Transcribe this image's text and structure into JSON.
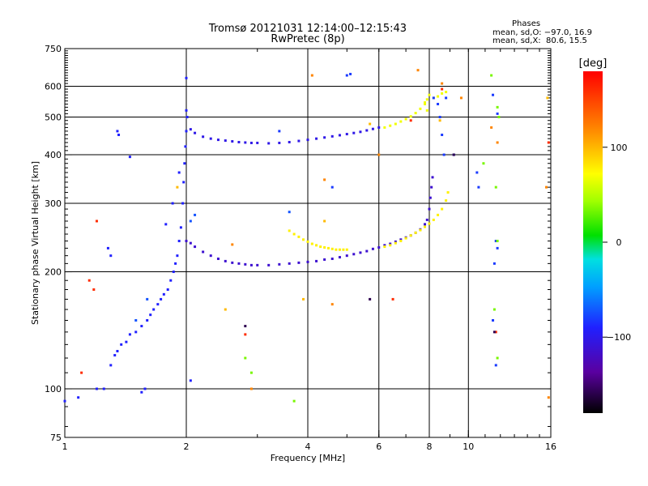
{
  "header": {
    "title": "Tromsø 20121031 12:14:00–12:15:43",
    "subtitle": "RwPretec (8p)"
  },
  "phase_stats": {
    "title": "Phases",
    "line_o": "mean, sd,O: −97.0, 16.9",
    "line_x": "mean, sd,X:  80.6, 15.5"
  },
  "colorbar": {
    "label": "[deg]",
    "range": [
      -180,
      180
    ],
    "ticks": [
      {
        "value": 100,
        "label": "100"
      },
      {
        "value": 0,
        "label": "0"
      },
      {
        "value": -100,
        "label": "−100"
      }
    ]
  },
  "chart_data": {
    "type": "scatter",
    "title": "Tromsø 20121031 12:14:00–12:15:43",
    "subtitle": "RwPretec (8p)",
    "xlabel": "Frequency [MHz]",
    "ylabel": "Stationary phase Virtual Height [km]",
    "x_scale": "log",
    "y_scale": "log",
    "xlim": [
      1,
      16
    ],
    "ylim": [
      75,
      750
    ],
    "x_ticks": [
      {
        "value": 1,
        "label": "1"
      },
      {
        "value": 2,
        "label": "2"
      },
      {
        "value": 4,
        "label": "4"
      },
      {
        "value": 6,
        "label": "6"
      },
      {
        "value": 8,
        "label": "8"
      },
      {
        "value": 10,
        "label": "10"
      },
      {
        "value": 16,
        "label": "16"
      }
    ],
    "y_ticks": [
      {
        "value": 75,
        "label": "75"
      },
      {
        "value": 100,
        "label": "100"
      },
      {
        "value": 200,
        "label": "200"
      },
      {
        "value": 300,
        "label": "300"
      },
      {
        "value": 400,
        "label": "400"
      },
      {
        "value": 500,
        "label": "500"
      },
      {
        "value": 600,
        "label": "600"
      },
      {
        "value": 750,
        "label": "750"
      }
    ],
    "grid_x": [
      2,
      4,
      6,
      8,
      10
    ],
    "grid_y": [
      100,
      200,
      300,
      400,
      500,
      600
    ],
    "color_by": "phase [deg]",
    "series": [
      {
        "phase": -100,
        "points": [
          [
            1.2,
            100
          ],
          [
            1.25,
            100
          ],
          [
            1.3,
            115
          ],
          [
            1.33,
            122
          ],
          [
            1.35,
            125
          ],
          [
            1.38,
            130
          ],
          [
            1.42,
            132
          ],
          [
            1.45,
            138
          ],
          [
            1.5,
            140
          ],
          [
            1.55,
            145
          ],
          [
            1.6,
            150
          ],
          [
            1.63,
            155
          ],
          [
            1.66,
            160
          ],
          [
            1.7,
            165
          ],
          [
            1.73,
            170
          ],
          [
            1.76,
            175
          ],
          [
            1.8,
            180
          ],
          [
            1.83,
            190
          ],
          [
            1.86,
            200
          ],
          [
            1.88,
            210
          ],
          [
            1.9,
            220
          ],
          [
            1.92,
            240
          ],
          [
            1.94,
            260
          ],
          [
            1.96,
            300
          ],
          [
            1.97,
            340
          ],
          [
            1.98,
            380
          ],
          [
            1.99,
            420
          ],
          [
            2.0,
            460
          ],
          [
            2.01,
            500
          ]
        ]
      },
      {
        "phase": -100,
        "points": [
          [
            1.35,
            460
          ],
          [
            1.36,
            450
          ],
          [
            1.45,
            395
          ],
          [
            1.28,
            230
          ],
          [
            1.3,
            220
          ],
          [
            1.08,
            95
          ],
          [
            1.0,
            93
          ],
          [
            1.55,
            98
          ],
          [
            1.58,
            100
          ],
          [
            2.05,
            105
          ],
          [
            2.0,
            520
          ],
          [
            2.0,
            630
          ],
          [
            1.92,
            360
          ],
          [
            1.85,
            300
          ],
          [
            1.78,
            265
          ]
        ]
      },
      {
        "phase": -110,
        "points": [
          [
            2.05,
            465
          ],
          [
            2.1,
            455
          ],
          [
            2.2,
            445
          ],
          [
            2.3,
            440
          ],
          [
            2.4,
            437
          ],
          [
            2.5,
            435
          ],
          [
            2.6,
            433
          ],
          [
            2.7,
            431
          ],
          [
            2.8,
            430
          ],
          [
            2.9,
            429
          ],
          [
            3.0,
            429
          ],
          [
            3.2,
            428
          ],
          [
            3.4,
            429
          ],
          [
            3.6,
            431
          ],
          [
            3.8,
            434
          ],
          [
            4.0,
            437
          ],
          [
            4.2,
            440
          ],
          [
            4.4,
            443
          ],
          [
            4.6,
            446
          ],
          [
            4.8,
            449
          ],
          [
            5.0,
            452
          ],
          [
            5.2,
            455
          ],
          [
            5.4,
            458
          ],
          [
            5.6,
            462
          ],
          [
            5.8,
            466
          ],
          [
            6.0,
            470
          ]
        ]
      },
      {
        "phase": -120,
        "points": [
          [
            2.0,
            240
          ],
          [
            2.05,
            237
          ],
          [
            2.1,
            232
          ],
          [
            2.2,
            225
          ],
          [
            2.3,
            220
          ],
          [
            2.4,
            216
          ],
          [
            2.5,
            213
          ],
          [
            2.6,
            211
          ],
          [
            2.7,
            210
          ],
          [
            2.8,
            209
          ],
          [
            2.9,
            208
          ],
          [
            3.0,
            208
          ],
          [
            3.2,
            208
          ],
          [
            3.4,
            209
          ],
          [
            3.6,
            210
          ],
          [
            3.8,
            211
          ],
          [
            4.0,
            212
          ],
          [
            4.2,
            213
          ],
          [
            4.4,
            215
          ],
          [
            4.6,
            216
          ],
          [
            4.8,
            218
          ],
          [
            5.0,
            220
          ],
          [
            5.2,
            222
          ],
          [
            5.4,
            224
          ],
          [
            5.6,
            226
          ],
          [
            5.8,
            229
          ],
          [
            6.0,
            231
          ],
          [
            6.2,
            234
          ],
          [
            6.4,
            236
          ],
          [
            6.6,
            239
          ],
          [
            6.8,
            242
          ],
          [
            7.0,
            245
          ],
          [
            7.2,
            248
          ],
          [
            7.4,
            252
          ],
          [
            7.6,
            257
          ],
          [
            7.8,
            265
          ],
          [
            7.9,
            272
          ],
          [
            8.0,
            290
          ],
          [
            8.05,
            310
          ],
          [
            8.1,
            330
          ],
          [
            8.15,
            350
          ]
        ]
      },
      {
        "phase": 80,
        "points": [
          [
            3.6,
            255
          ],
          [
            3.7,
            250
          ],
          [
            3.8,
            246
          ],
          [
            3.9,
            242
          ],
          [
            4.0,
            239
          ],
          [
            4.1,
            236
          ],
          [
            4.2,
            234
          ],
          [
            4.3,
            232
          ],
          [
            4.4,
            231
          ],
          [
            4.5,
            230
          ],
          [
            4.6,
            229
          ],
          [
            4.7,
            228
          ],
          [
            4.8,
            228
          ],
          [
            4.9,
            228
          ],
          [
            5.0,
            228
          ],
          [
            6.2,
            232
          ],
          [
            6.4,
            234
          ],
          [
            6.6,
            237
          ],
          [
            6.8,
            240
          ],
          [
            7.0,
            244
          ],
          [
            7.2,
            248
          ],
          [
            7.4,
            252
          ],
          [
            7.6,
            256
          ],
          [
            7.8,
            261
          ],
          [
            8.0,
            266
          ],
          [
            8.2,
            272
          ],
          [
            8.4,
            280
          ],
          [
            8.6,
            290
          ],
          [
            8.8,
            305
          ],
          [
            8.9,
            320
          ]
        ]
      },
      {
        "phase": 70,
        "points": [
          [
            6.2,
            470
          ],
          [
            6.4,
            475
          ],
          [
            6.6,
            480
          ],
          [
            6.8,
            487
          ],
          [
            7.0,
            494
          ],
          [
            7.2,
            502
          ],
          [
            7.4,
            512
          ],
          [
            7.6,
            525
          ],
          [
            7.8,
            540
          ],
          [
            7.9,
            555
          ],
          [
            8.0,
            570
          ],
          [
            8.2,
            560
          ],
          [
            8.4,
            565
          ],
          [
            8.6,
            575
          ],
          [
            8.8,
            580
          ],
          [
            7.9,
            520
          ],
          [
            7.8,
            545
          ]
        ]
      },
      {
        "phase": -90,
        "points": [
          [
            8.2,
            560
          ],
          [
            8.4,
            540
          ],
          [
            8.5,
            500
          ],
          [
            8.6,
            450
          ],
          [
            8.7,
            400
          ],
          [
            8.8,
            560
          ],
          [
            9.2,
            400
          ],
          [
            5.0,
            640
          ],
          [
            5.1,
            645
          ],
          [
            4.6,
            330
          ],
          [
            10.5,
            360
          ],
          [
            10.6,
            330
          ],
          [
            11.5,
            570
          ],
          [
            11.8,
            510
          ],
          [
            11.7,
            240
          ],
          [
            11.8,
            230
          ],
          [
            11.6,
            210
          ],
          [
            11.5,
            150
          ],
          [
            11.7,
            115
          ],
          [
            3.4,
            460
          ]
        ]
      },
      {
        "phase": 30,
        "points": [
          [
            11.4,
            640
          ],
          [
            11.8,
            530
          ],
          [
            11.9,
            500
          ],
          [
            11.7,
            330
          ],
          [
            11.8,
            240
          ],
          [
            11.6,
            160
          ],
          [
            11.8,
            120
          ],
          [
            3.7,
            93
          ],
          [
            2.8,
            120
          ],
          [
            2.9,
            110
          ],
          [
            10.9,
            380
          ]
        ]
      },
      {
        "phase": 120,
        "points": [
          [
            4.1,
            640
          ],
          [
            4.4,
            345
          ],
          [
            4.6,
            165
          ],
          [
            2.6,
            235
          ],
          [
            2.9,
            100
          ],
          [
            6.0,
            400
          ],
          [
            7.5,
            660
          ],
          [
            8.6,
            610
          ],
          [
            15.6,
            330
          ],
          [
            15.8,
            95
          ],
          [
            11.8,
            430
          ],
          [
            9.6,
            560
          ],
          [
            11.4,
            470
          ]
        ]
      },
      {
        "phase": 160,
        "points": [
          [
            1.2,
            270
          ],
          [
            1.15,
            190
          ],
          [
            1.18,
            180
          ],
          [
            6.5,
            170
          ],
          [
            8.6,
            590
          ],
          [
            7.2,
            490
          ],
          [
            15.8,
            430
          ],
          [
            11.7,
            140
          ],
          [
            1.1,
            110
          ],
          [
            2.8,
            138
          ]
        ]
      },
      {
        "phase": -160,
        "points": [
          [
            11.6,
            140
          ],
          [
            9.2,
            400
          ],
          [
            2.8,
            145
          ],
          [
            5.7,
            170
          ]
        ]
      },
      {
        "phase": 100,
        "points": [
          [
            3.9,
            170
          ],
          [
            2.5,
            160
          ],
          [
            4.4,
            270
          ],
          [
            1.9,
            330
          ],
          [
            8.5,
            490
          ],
          [
            15.7,
            560
          ],
          [
            5.7,
            480
          ]
        ]
      },
      {
        "phase": -80,
        "points": [
          [
            2.1,
            280
          ],
          [
            2.05,
            270
          ],
          [
            3.6,
            285
          ],
          [
            1.5,
            150
          ],
          [
            1.6,
            170
          ]
        ]
      }
    ]
  }
}
